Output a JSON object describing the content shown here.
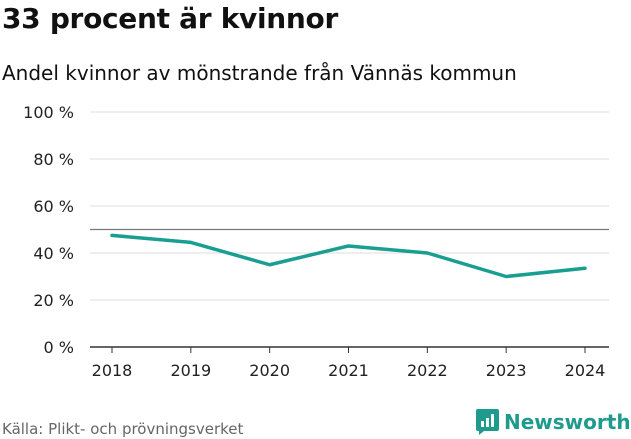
{
  "title": "33 procent är kvinnor",
  "subtitle": "Andel kvinnor av mönstrande från Vännäs kommun",
  "source": "Källa: Plikt- och prövningsverket",
  "brand": {
    "name": "Newsworthy",
    "icon": "newsworthy-logo-icon",
    "color": "#1f9b8e"
  },
  "chart_data": {
    "type": "line",
    "title": "33 procent är kvinnor",
    "subtitle": "Andel kvinnor av mönstrande från Vännäs kommun",
    "xlabel": "",
    "ylabel": "",
    "categories": [
      "2018",
      "2019",
      "2020",
      "2021",
      "2022",
      "2023",
      "2024"
    ],
    "series": [
      {
        "name": "Andel kvinnor",
        "color": "#1a9e91",
        "values": [
          47.5,
          44.5,
          35,
          43,
          40,
          30,
          33.5
        ]
      }
    ],
    "ylim": [
      0,
      100
    ],
    "yticks": [
      0,
      20,
      40,
      60,
      80,
      100
    ],
    "ytick_labels": [
      "0 %",
      "20 %",
      "40 %",
      "60 %",
      "80 %",
      "100 %"
    ],
    "reference_line": 50,
    "grid": true,
    "legend": "none"
  }
}
